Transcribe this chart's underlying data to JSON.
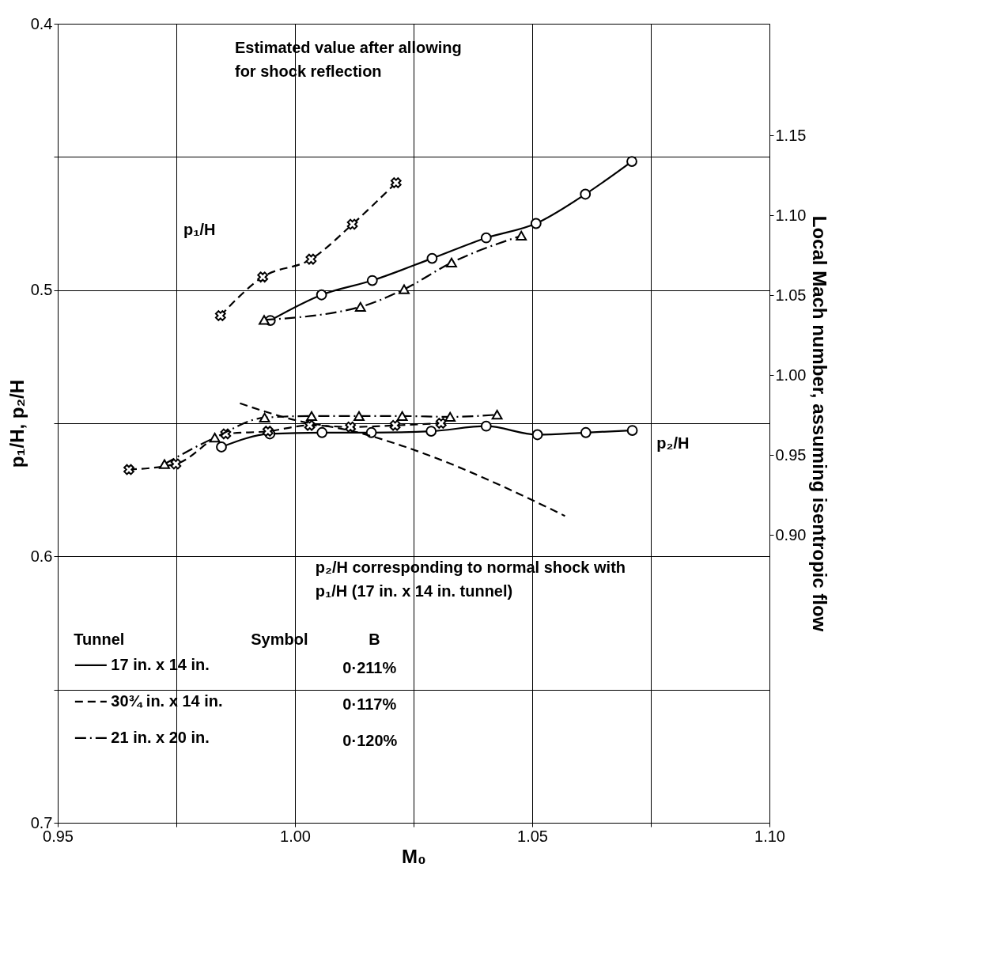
{
  "chart_data": {
    "type": "line",
    "xlabel": "M₀",
    "ylabel": "p₁/H, p₂/H",
    "y2label": "Local Mach number, assuming isentropic flow",
    "xlim": [
      0.95,
      1.1
    ],
    "xticks": [
      0.95,
      {
        "value": 0.975,
        "label": null
      },
      {
        "value": 1.0,
        "label": "1.00"
      },
      {
        "value": 1.025,
        "label": null
      },
      1.05,
      {
        "value": 1.075,
        "label": null
      },
      {
        "value": 1.1,
        "label": "1.10"
      }
    ],
    "ylim": [
      0.7,
      0.4
    ],
    "yticks": [
      0.4,
      {
        "value": 0.45,
        "label": null
      },
      0.5,
      {
        "value": 0.55,
        "label": null
      },
      0.6,
      {
        "value": 0.65,
        "label": null
      },
      0.7
    ],
    "y2lim": [
      0.72,
      1.22
    ],
    "y2ticks": [
      {
        "value": 0.9,
        "label": "0.90"
      },
      0.95,
      {
        "value": 1.0,
        "label": "1.00"
      },
      1.05,
      {
        "value": 1.1,
        "label": "1.10"
      },
      1.15
    ],
    "grid": true,
    "legend": "bottom left",
    "legend_title": "Tunnel",
    "series": [
      {
        "name": "17 in. x 14 in.",
        "color": "#000000",
        "marker": "circle",
        "line_style": "solid",
        "x": [
          0.9948,
          1.0056,
          1.0163,
          1.0289,
          1.0403,
          1.0508,
          1.0612,
          1.071
        ],
        "values": [
          0.5114,
          0.5018,
          0.4964,
          0.4881,
          0.4804,
          0.475,
          0.464,
          0.4517
        ]
      },
      {
        "name": "30¾ in. x 14 in.",
        "color": "#000000",
        "marker": "cross",
        "line_style": "dashed",
        "x": [
          0.9843,
          0.9932,
          1.0034,
          1.0121,
          1.0213
        ],
        "values": [
          0.5096,
          0.4951,
          0.4884,
          0.4753,
          0.4597
        ]
      },
      {
        "name": "21 in. x 20 in.",
        "color": "#000000",
        "marker": "triangle",
        "line_style": "dashdot",
        "x": [
          0.9935,
          1.0138,
          1.023,
          1.033,
          1.0477
        ],
        "values": [
          0.5112,
          0.5063,
          0.4997,
          0.4897,
          0.4796
        ]
      },
      {
        "color": "#000000",
        "marker": "circle",
        "line_style": "solid",
        "x": [
          0.9845,
          0.9947,
          1.0057,
          1.0161,
          1.0287,
          1.0403,
          1.0511,
          1.0613,
          1.0711
        ],
        "values": [
          0.5589,
          0.554,
          0.5535,
          0.5535,
          0.553,
          0.5511,
          0.5543,
          0.5535,
          0.5527
        ]
      },
      {
        "color": "#000000",
        "marker": "cross",
        "line_style": "dashed",
        "x": [
          0.965,
          0.9749,
          0.9854,
          0.9943,
          1.0031,
          1.0117,
          1.0211,
          1.0308
        ],
        "values": [
          0.5674,
          0.5653,
          0.554,
          0.553,
          0.5508,
          0.5514,
          0.5508,
          0.55
        ]
      },
      {
        "color": "#000000",
        "marker": "triangle",
        "line_style": "dashdot",
        "x": [
          0.9725,
          0.9831,
          0.9936,
          1.0035,
          1.0135,
          1.0226,
          1.0327,
          1.0426
        ],
        "values": [
          0.5653,
          0.5554,
          0.5479,
          0.5473,
          0.5473,
          0.5473,
          0.5476,
          0.5468
        ]
      },
      {
        "color": "#000000",
        "marker": "none",
        "line_style": "dashed",
        "x": [
          0.9884,
          0.9984,
          1.0134,
          1.0283,
          1.0433,
          1.0569
        ],
        "values": [
          0.5425,
          0.5481,
          0.5535,
          0.5621,
          0.5733,
          0.5848
        ]
      }
    ],
    "annotations": [
      "Estimated value after allowing for shock reflection",
      "p₁/H",
      "p₂/H",
      "p₂/H corresponding to normal shock with p₁/H (17 in. x 14 in. tunnel)",
      "Symbol",
      "B",
      "0·211%",
      "0·117%",
      "0·120%"
    ]
  }
}
